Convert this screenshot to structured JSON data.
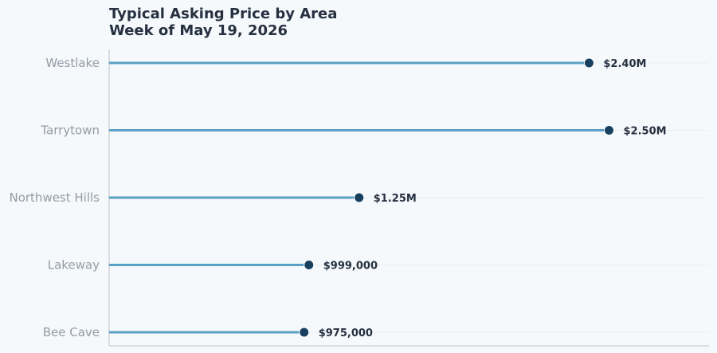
{
  "colors": {
    "background": "#f5f9fc",
    "stem": "#5b9fc4",
    "dot": "#17405f",
    "gridline": "#e9eef3",
    "axis": "#c8ccd0",
    "category_text": "#959ba5",
    "value_text": "#263040"
  },
  "chart_data": {
    "type": "lollipop",
    "title": "Typical Asking Price by Area",
    "subtitle": "Week of May 19, 2026",
    "xlim": [
      0,
      3000000
    ],
    "grid": "horizontal",
    "categories": [
      "Westlake",
      "Tarrytown",
      "Northwest Hills",
      "Lakeway",
      "Bee Cave"
    ],
    "values": [
      2400000,
      2500000,
      1250000,
      999000,
      975000
    ],
    "value_labels": [
      "$2.40M",
      "$2.50M",
      "$1.25M",
      "$999,000",
      "$975,000"
    ]
  }
}
